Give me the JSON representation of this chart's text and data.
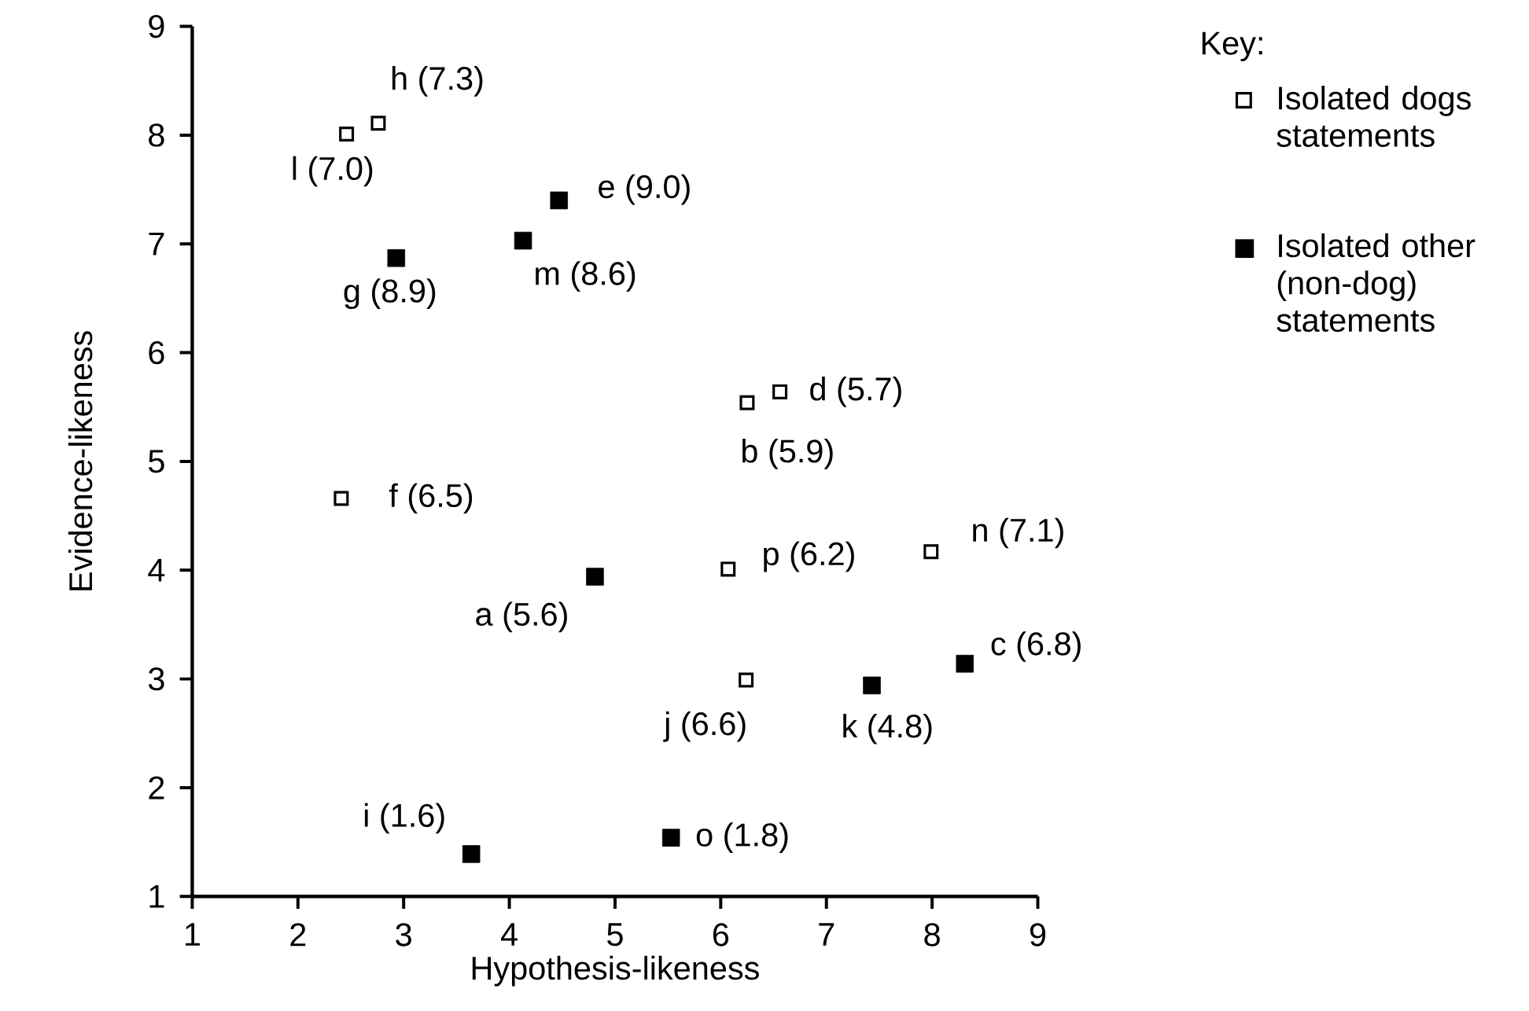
{
  "chart_data": {
    "type": "scatter",
    "xlabel": "Hypothesis-likeness",
    "ylabel": "Evidence-likeness",
    "legend_title": "Key:",
    "legend": "right",
    "marker": "square",
    "xlim": [
      1,
      9
    ],
    "ylim": [
      1,
      9
    ],
    "xticks": [
      1,
      2,
      3,
      4,
      5,
      6,
      7,
      8,
      9
    ],
    "yticks": [
      1,
      2,
      3,
      4,
      5,
      6,
      7,
      8,
      9
    ],
    "series": [
      {
        "name": "Isolated dogs statements",
        "color": "#000000",
        "x": [
          2.46,
          2.76,
          6.56,
          6.25,
          2.41,
          7.99,
          6.07,
          6.24
        ],
        "values": [
          8.01,
          8.11,
          5.64,
          5.54,
          4.66,
          4.17,
          4.01,
          2.99
        ]
      },
      {
        "name": "Isolated other (non-dog) statements",
        "color": "#000000",
        "x": [
          4.47,
          4.13,
          2.93,
          4.81,
          8.31,
          7.43,
          3.64,
          5.53
        ],
        "values": [
          7.4,
          7.03,
          6.87,
          3.94,
          3.14,
          2.94,
          1.39,
          1.54
        ]
      }
    ],
    "annotations": [
      {
        "text": "l (7.0)",
        "x": 2.46,
        "y": 8.01
      },
      {
        "text": "h (7.3)",
        "x": 2.76,
        "y": 8.11
      },
      {
        "text": "d (5.7)",
        "x": 6.56,
        "y": 5.64
      },
      {
        "text": "b (5.9)",
        "x": 6.25,
        "y": 5.54
      },
      {
        "text": "f (6.5)",
        "x": 2.41,
        "y": 4.66
      },
      {
        "text": "n (7.1)",
        "x": 7.99,
        "y": 4.17
      },
      {
        "text": "p (6.2)",
        "x": 6.07,
        "y": 4.01
      },
      {
        "text": "j (6.6)",
        "x": 6.24,
        "y": 2.99
      },
      {
        "text": "e (9.0)",
        "x": 4.47,
        "y": 7.4
      },
      {
        "text": "m (8.6)",
        "x": 4.13,
        "y": 7.03
      },
      {
        "text": "g (8.9)",
        "x": 2.93,
        "y": 6.87
      },
      {
        "text": "a (5.6)",
        "x": 4.81,
        "y": 3.94
      },
      {
        "text": "c (6.8)",
        "x": 8.31,
        "y": 3.14
      },
      {
        "text": "k (4.8)",
        "x": 7.43,
        "y": 2.94
      },
      {
        "text": "i (1.6)",
        "x": 3.64,
        "y": 1.39
      },
      {
        "text": "o (1.8)",
        "x": 5.53,
        "y": 1.54
      }
    ]
  }
}
